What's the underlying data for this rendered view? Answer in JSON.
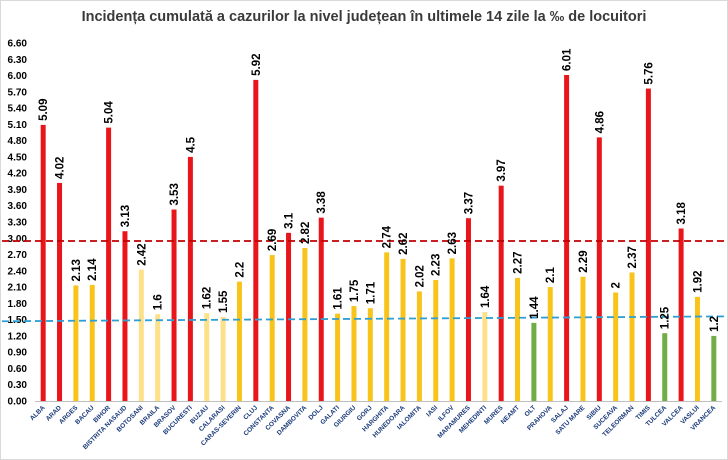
{
  "chart_data": {
    "type": "bar",
    "title": "Incidența cumulată a cazurilor la nivel județean în ultimele 14 zile la ‰ de locuitori",
    "xlabel": "",
    "ylabel": "",
    "ylim": [
      0,
      6.6
    ],
    "y_ticks": [
      "0.00",
      "0.30",
      "0.60",
      "0.90",
      "1.20",
      "1.50",
      "1.80",
      "2.10",
      "2.40",
      "2.70",
      "3.00",
      "3.30",
      "3.60",
      "3.90",
      "4.20",
      "4.50",
      "4.80",
      "5.10",
      "5.40",
      "5.70",
      "6.00",
      "6.30",
      "6.60"
    ],
    "categories": [
      "ALBA",
      "ARAD",
      "ARGES",
      "BACAU",
      "BIHOR",
      "BISTRITA NASAUD",
      "BOTOSANI",
      "BRAILA",
      "BRASOV",
      "BUCURESTI",
      "BUZAU",
      "CALARASI",
      "CARAS-SEVERIN",
      "CLUJ",
      "CONSTANTA",
      "COVASNA",
      "DAMBOVITA",
      "DOLJ",
      "GALATI",
      "GIURGIU",
      "GORJ",
      "HARGHITA",
      "HUNEDOARA",
      "IALOMITA",
      "IASI",
      "ILFOV",
      "MARAMURES",
      "MEHEDINTI",
      "MURES",
      "NEAMT",
      "OLT",
      "PRAHOVA",
      "SALAJ",
      "SATU MARE",
      "SIBIU",
      "SUCEAVA",
      "TELEORMAN",
      "TIMIS",
      "TULCEA",
      "VALCEA",
      "VASLUI",
      "VRANCEA"
    ],
    "values": [
      5.09,
      4.02,
      2.13,
      2.14,
      5.04,
      3.13,
      2.42,
      1.6,
      3.53,
      4.5,
      1.62,
      1.55,
      2.2,
      5.92,
      2.69,
      3.1,
      2.82,
      3.38,
      1.61,
      1.75,
      1.71,
      2.74,
      2.62,
      2.02,
      2.23,
      2.63,
      3.37,
      1.64,
      3.97,
      2.27,
      1.44,
      2.1,
      6.01,
      2.29,
      4.86,
      2,
      2.37,
      5.76,
      1.25,
      3.18,
      1.92,
      1.2
    ],
    "value_labels": [
      "5.09",
      "4.02",
      "2.13",
      "2.14",
      "5.04",
      "3.13",
      "2.42",
      "1.6",
      "3.53",
      "4.5",
      "1.62",
      "1.55",
      "2.2",
      "5.92",
      "2.69",
      "3.1",
      "2.82",
      "3.38",
      "1.61",
      "1.75",
      "1.71",
      "2.74",
      "2.62",
      "2.02",
      "2.23",
      "2.63",
      "3.37",
      "1.64",
      "3.97",
      "2.27",
      "1.44",
      "2.1",
      "6.01",
      "2.29",
      "4.86",
      "2",
      "2.37",
      "5.76",
      "1.25",
      "3.18",
      "1.92",
      "1.2"
    ],
    "bar_colors": [
      "#e8161b",
      "#e8161b",
      "#f8c31b",
      "#f8c31b",
      "#e8161b",
      "#e8161b",
      "#fde08a",
      "#fde08a",
      "#e8161b",
      "#e8161b",
      "#fde08a",
      "#fde08a",
      "#f8c31b",
      "#e8161b",
      "#f8c31b",
      "#e8161b",
      "#f8c31b",
      "#e8161b",
      "#f8c31b",
      "#f8c31b",
      "#f8c31b",
      "#f8c31b",
      "#f8c31b",
      "#f8c31b",
      "#f8c31b",
      "#f8c31b",
      "#e8161b",
      "#fde08a",
      "#e8161b",
      "#f8c31b",
      "#70ad47",
      "#f8c31b",
      "#e8161b",
      "#f8c31b",
      "#e8161b",
      "#f8c31b",
      "#f8c31b",
      "#e8161b",
      "#70ad47",
      "#e8161b",
      "#f8c31b",
      "#70ad47"
    ],
    "threshold_red": {
      "value": 2.95,
      "color": "#c00000",
      "style": "dashed"
    },
    "threshold_blue": {
      "value_start": 1.47,
      "value_end": 1.56,
      "color": "#2e9fd4",
      "style": "dashed"
    },
    "grid": false,
    "legend": "none"
  }
}
